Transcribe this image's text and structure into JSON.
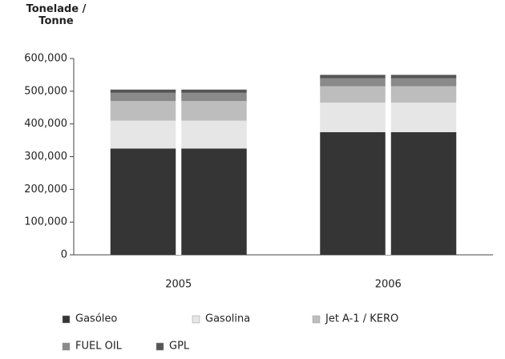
{
  "chart_data": {
    "type": "stacked_bar",
    "ylabel": "Tonelade / Tonne",
    "categories": [
      "2005",
      "2006"
    ],
    "series": [
      {
        "name": "Gasóleo",
        "color": "#353535",
        "values": [
          325000,
          375000
        ]
      },
      {
        "name": "Gasolina",
        "color": "#e6e6e6",
        "values": [
          85000,
          90000
        ]
      },
      {
        "name": "Jet A-1 / KERO",
        "color": "#bdbdbd",
        "values": [
          60000,
          50000
        ]
      },
      {
        "name": "FUEL OIL",
        "color": "#8a8a8a",
        "values": [
          25000,
          25000
        ]
      },
      {
        "name": "GPL",
        "color": "#555555",
        "values": [
          10000,
          10000
        ]
      }
    ],
    "ylim": [
      0,
      600000
    ],
    "yticks": [
      0,
      {
        "value": 100000,
        "label": "100,000"
      },
      {
        "value": 200000,
        "label": "200,000"
      },
      {
        "value": 300000,
        "label": "300,000"
      },
      {
        "value": 400000,
        "label": "400,000"
      },
      {
        "value": 500000,
        "label": "500,000"
      },
      {
        "value": 600000,
        "label": "600,000"
      }
    ],
    "grid": false
  }
}
